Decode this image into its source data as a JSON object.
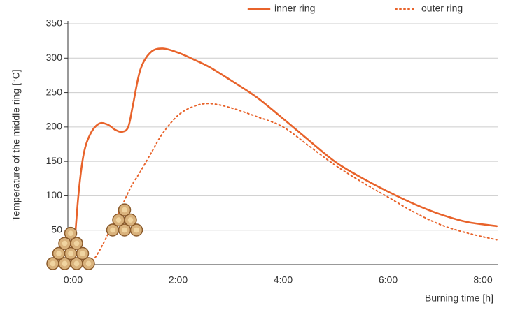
{
  "chart_data": {
    "type": "line",
    "x_label": "Burning time [h]",
    "y_label": "Temperature of the middle ring [°C]",
    "x": [
      0,
      0.1,
      0.2,
      0.33,
      0.5,
      0.67,
      0.8,
      0.93,
      1.05,
      1.14,
      1.28,
      1.47,
      1.7,
      2.0,
      2.3,
      2.6,
      3.0,
      3.5,
      4.0,
      4.5,
      5.0,
      5.5,
      6.0,
      6.5,
      7.0,
      7.5,
      8.07
    ],
    "series": [
      {
        "name": "inner ring",
        "color": "#e8632b",
        "style": "solid",
        "values": [
          0,
          100,
          160,
          190,
          205,
          203,
          196,
          193,
          200,
          232,
          283,
          308,
          314,
          308,
          298,
          287,
          268,
          243,
          212,
          180,
          149,
          126,
          106,
          88,
          73,
          62,
          56
        ]
      },
      {
        "name": "outer ring",
        "color": "#e8632b",
        "style": "dotted",
        "values": [
          null,
          null,
          null,
          0,
          20,
          45,
          65,
          85,
          105,
          118,
          135,
          160,
          190,
          217,
          230,
          234,
          228,
          215,
          200,
          172,
          144,
          120,
          98,
          76,
          58,
          46,
          36
        ]
      }
    ],
    "xlim": [
      -0.1,
      8.1
    ],
    "xticks": [
      {
        "value": 0,
        "label": "0:00"
      },
      {
        "value": 2,
        "label": "2:00"
      },
      {
        "value": 4,
        "label": "4:00"
      },
      {
        "value": 6,
        "label": "6:00"
      },
      {
        "value": 8,
        "label": "8:00"
      }
    ],
    "ylim": [
      0,
      350
    ],
    "yticks": [
      50,
      100,
      150,
      200,
      250,
      300,
      350
    ],
    "grid": true,
    "legend": "top"
  }
}
